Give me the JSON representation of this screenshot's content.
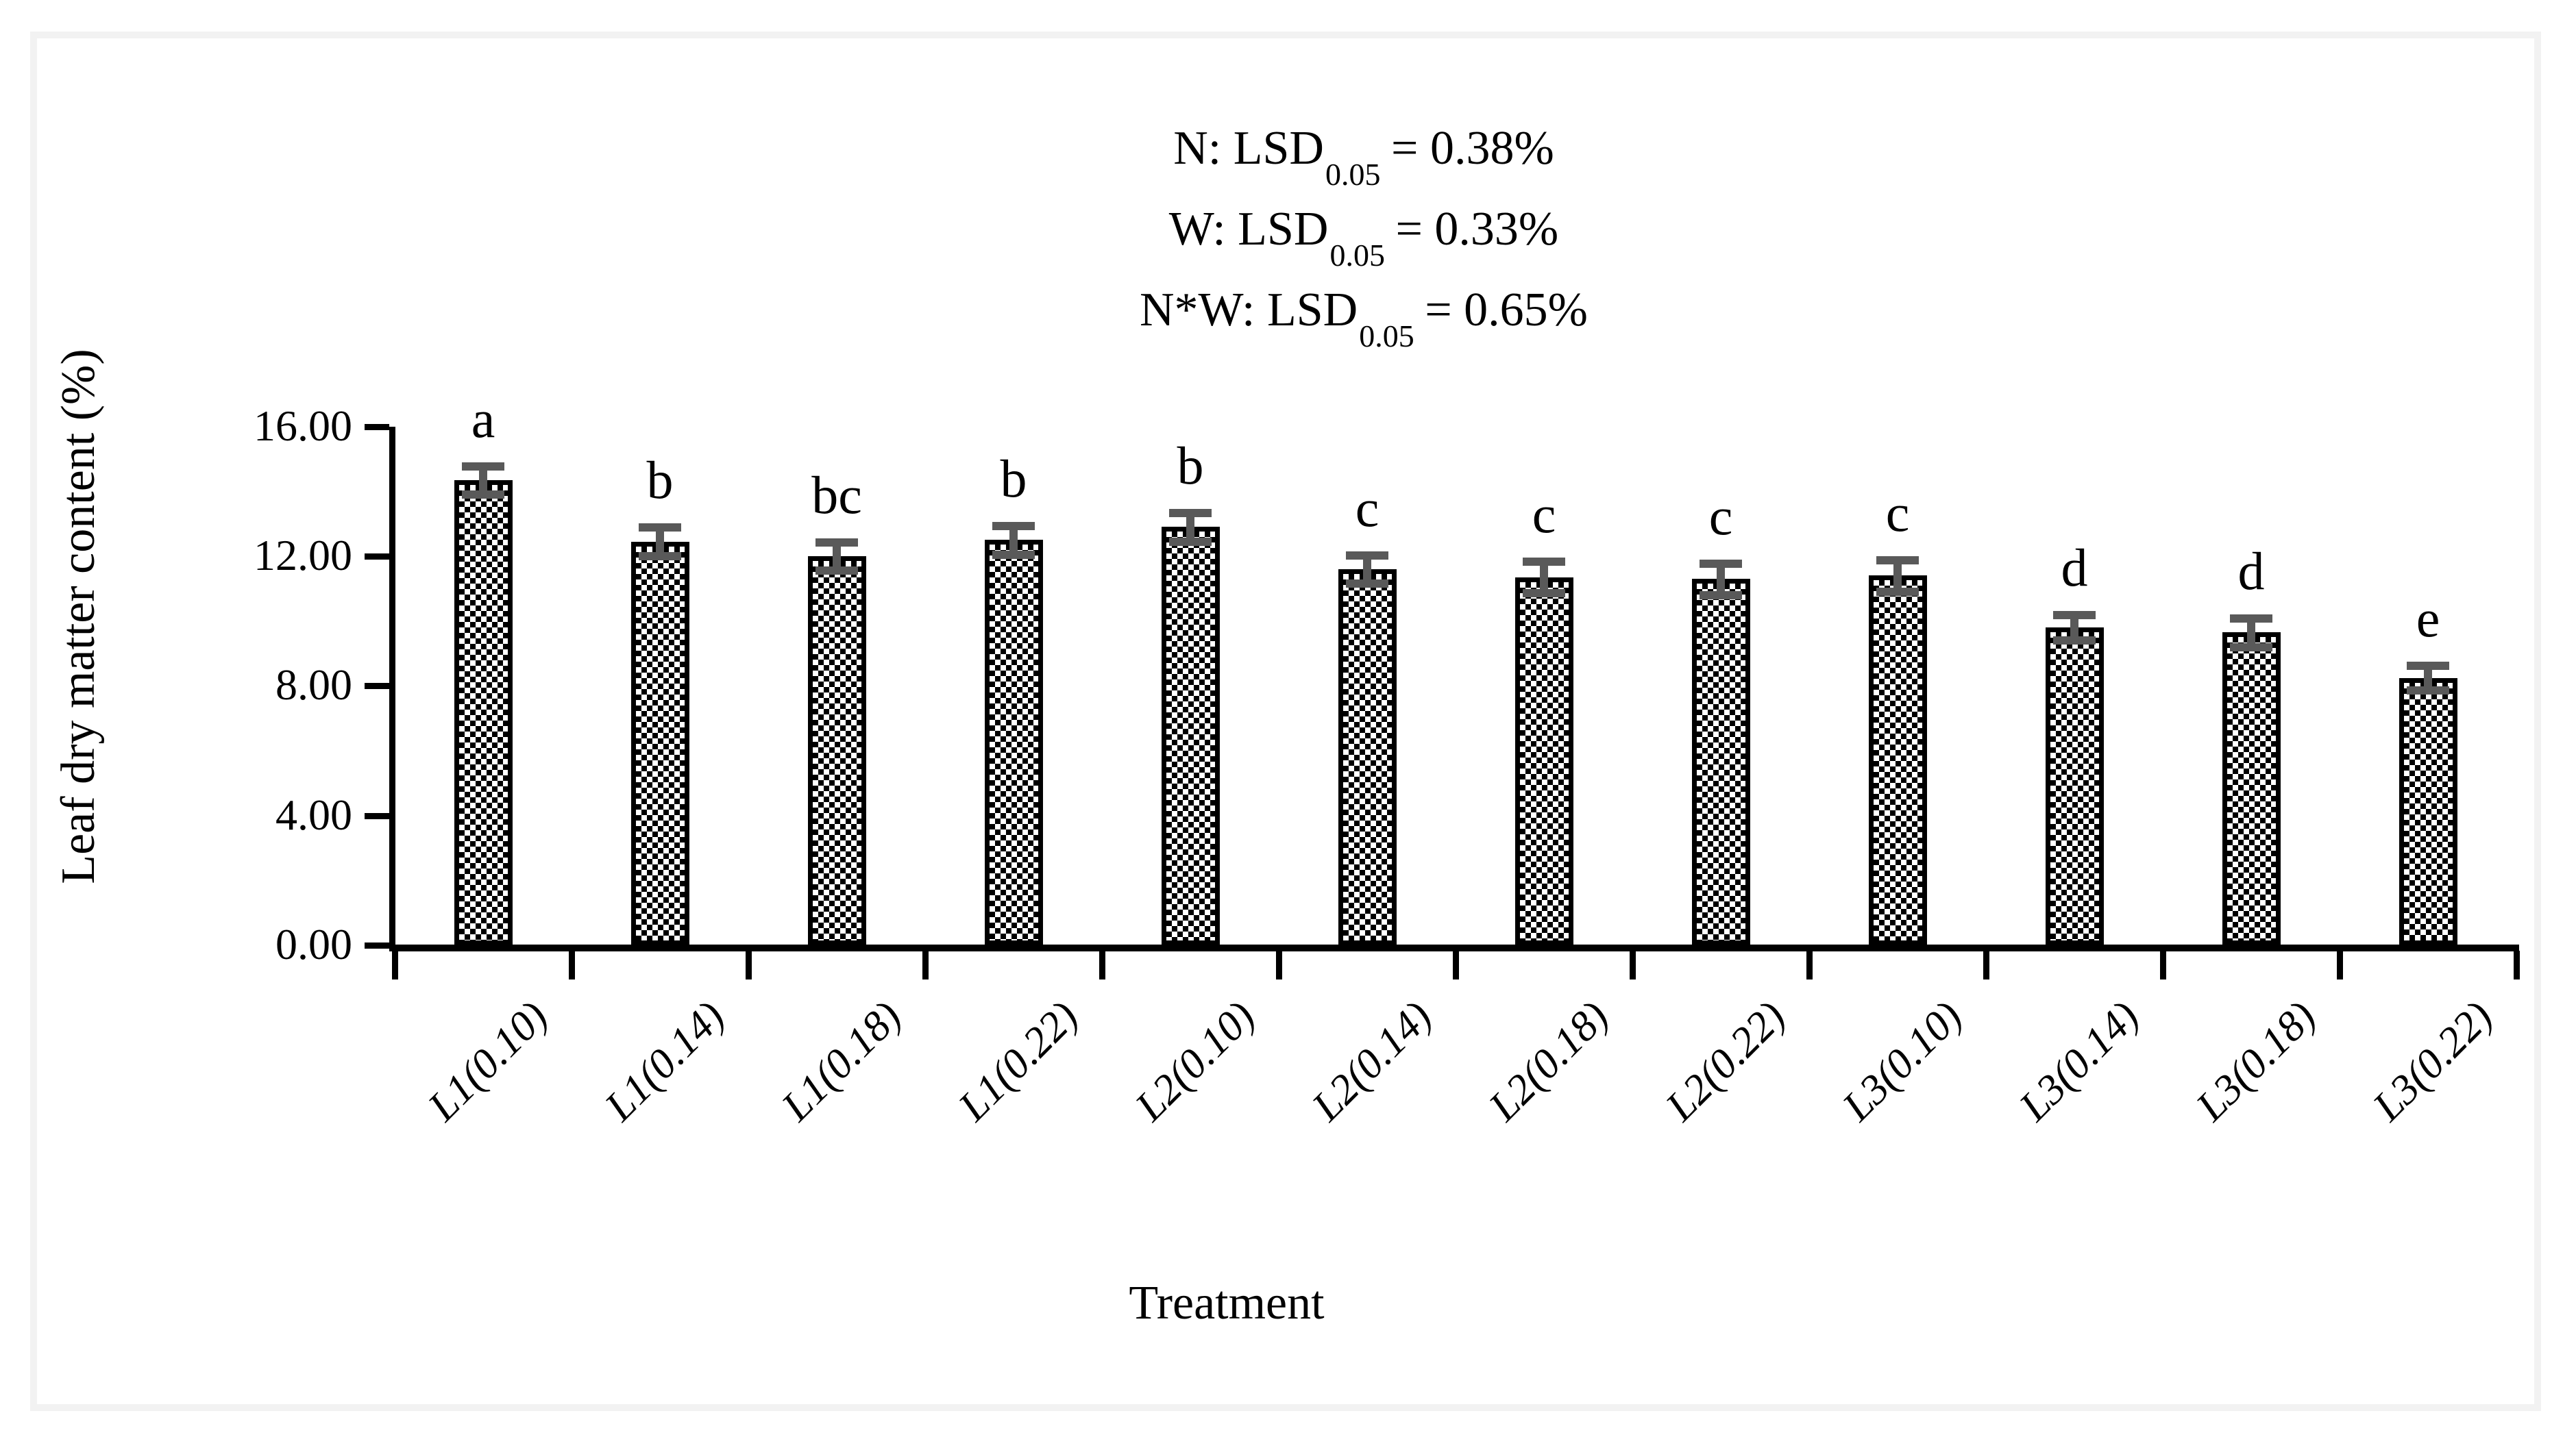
{
  "chart_data": {
    "type": "bar",
    "title": "",
    "xlabel": "Treatment",
    "ylabel": "Leaf dry matter content (%)",
    "ylim": [
      0,
      16
    ],
    "ytick_values": [
      0,
      4,
      8,
      12,
      16
    ],
    "ytick_labels": [
      "0.00",
      "4.00",
      "8.00",
      "12.00",
      "16.00"
    ],
    "grid": false,
    "legend": null,
    "categories": [
      "L1(0.10)",
      "L1(0.14)",
      "L1(0.18)",
      "L1(0.22)",
      "L2(0.10)",
      "L2(0.14)",
      "L2(0.18)",
      "L2(0.22)",
      "L3(0.10)",
      "L3(0.14)",
      "L3(0.18)",
      "L3(0.22)"
    ],
    "values": [
      14.35,
      12.45,
      12.0,
      12.5,
      12.9,
      11.6,
      11.35,
      11.3,
      11.4,
      9.8,
      9.65,
      8.25
    ],
    "errors": [
      0.45,
      0.45,
      0.45,
      0.45,
      0.45,
      0.45,
      0.5,
      0.5,
      0.5,
      0.4,
      0.45,
      0.4
    ],
    "sig_letters": [
      "a",
      "b",
      "bc",
      "b",
      "b",
      "c",
      "c",
      "c",
      "c",
      "d",
      "d",
      "e"
    ],
    "annotations": [
      {
        "prefix": "N: LSD",
        "subscript": "0.05",
        "suffix": " = 0.38%"
      },
      {
        "prefix": "W: LSD",
        "subscript": "0.05",
        "suffix": " = 0.33%"
      },
      {
        "prefix": "N*W: LSD",
        "subscript": "0.05",
        "suffix": " = 0.65%"
      }
    ],
    "colors": {
      "bar_fill_pattern": "black-white-checkerboard",
      "bar_border": "#000000",
      "error_bar": "#595959",
      "axis": "#000000",
      "text": "#000000",
      "frame_border": "#f2f2f2",
      "background": "#ffffff"
    }
  }
}
